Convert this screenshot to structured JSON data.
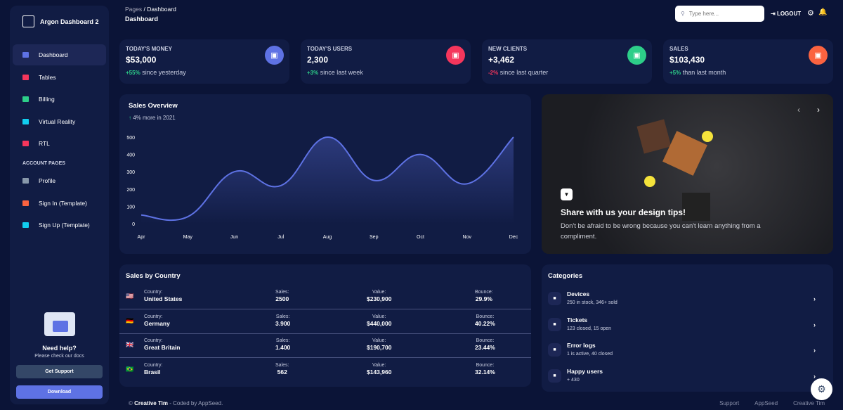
{
  "sidebar": {
    "brand": "Argon Dashboard 2",
    "items": [
      {
        "label": "Dashboard",
        "icon": "tv-icon",
        "color": "#5e72e4"
      },
      {
        "label": "Tables",
        "icon": "calendar-icon",
        "color": "#f5365c"
      },
      {
        "label": "Billing",
        "icon": "credit-card-icon",
        "color": "#2dce89"
      },
      {
        "label": "Virtual Reality",
        "icon": "app-icon",
        "color": "#11cdef"
      },
      {
        "label": "RTL",
        "icon": "world-icon",
        "color": "#f5365c"
      }
    ],
    "section": "ACCOUNT PAGES",
    "account_items": [
      {
        "label": "Profile",
        "icon": "user-icon",
        "color": "#8898aa"
      },
      {
        "label": "Sign In (Template)",
        "icon": "copy-icon",
        "color": "#fb6340"
      },
      {
        "label": "Sign Up (Template)",
        "icon": "collection-icon",
        "color": "#11cdef"
      }
    ],
    "help_title": "Need help?",
    "help_sub": "Please check our docs",
    "support": "Get Support",
    "download": "Download"
  },
  "header": {
    "breadcrumb_root": "Pages",
    "breadcrumb_sep": "/",
    "breadcrumb_current": "Dashboard",
    "title": "Dashboard",
    "search_placeholder": "Type here...",
    "logout": "LOGOUT"
  },
  "stats": [
    {
      "label": "TODAY'S MONEY",
      "value": "$53,000",
      "change": "+55%",
      "rest": " since yesterday",
      "up": true,
      "color": "#5e72e4",
      "icon": "money-icon"
    },
    {
      "label": "TODAY'S USERS",
      "value": "2,300",
      "change": "+3%",
      "rest": " since last week",
      "up": true,
      "color": "#f5365c",
      "icon": "world-icon"
    },
    {
      "label": "NEW CLIENTS",
      "value": "+3,462",
      "change": "-2%",
      "rest": " since last quarter",
      "up": false,
      "color": "#2dce89",
      "icon": "paper-icon"
    },
    {
      "label": "SALES",
      "value": "$103,430",
      "change": "+5%",
      "rest": " than last month",
      "up": true,
      "color": "#fb6340",
      "icon": "cart-icon"
    }
  ],
  "chart_data": {
    "type": "line",
    "title": "Sales Overview",
    "subtitle": "4% more in 2021",
    "categories": [
      "Apr",
      "May",
      "Jun",
      "Jul",
      "Aug",
      "Sep",
      "Oct",
      "Nov",
      "Dec"
    ],
    "values": [
      50,
      40,
      300,
      220,
      500,
      250,
      400,
      230,
      500
    ],
    "yticks": [
      0,
      100,
      200,
      300,
      400,
      500
    ],
    "ylim": [
      0,
      500
    ],
    "color": "#5e72e4",
    "grid": false
  },
  "carousel": {
    "title": "Share with us your design tips!",
    "text": "Don't be afraid to be wrong because you can't learn anything from a compliment."
  },
  "countries": {
    "title": "Sales by Country",
    "h_country": "Country:",
    "h_sales": "Sales:",
    "h_value": "Value:",
    "h_bounce": "Bounce:",
    "rows": [
      {
        "flag": "🇺🇸",
        "country": "United States",
        "sales": "2500",
        "value": "$230,900",
        "bounce": "29.9%"
      },
      {
        "flag": "🇩🇪",
        "country": "Germany",
        "sales": "3.900",
        "value": "$440,000",
        "bounce": "40.22%"
      },
      {
        "flag": "🇬🇧",
        "country": "Great Britain",
        "sales": "1.400",
        "value": "$190,700",
        "bounce": "23.44%"
      },
      {
        "flag": "🇧🇷",
        "country": "Brasil",
        "sales": "562",
        "value": "$143,960",
        "bounce": "32.14%"
      }
    ]
  },
  "categories": {
    "title": "Categories",
    "items": [
      {
        "title": "Devices",
        "sub": "250 in stock, 346+ sold",
        "icon": "mobile-icon"
      },
      {
        "title": "Tickets",
        "sub": "123 closed, 15 open",
        "icon": "tag-icon"
      },
      {
        "title": "Error logs",
        "sub": "1 is active, 40 closed",
        "icon": "box-icon"
      },
      {
        "title": "Happy users",
        "sub": "+ 430",
        "icon": "smile-icon"
      }
    ]
  },
  "footer": {
    "copy": "©",
    "author": "Creative Tim",
    "credit": " - Coded by AppSeed.",
    "links": [
      "Support",
      "AppSeed",
      "Creative Tim"
    ]
  }
}
